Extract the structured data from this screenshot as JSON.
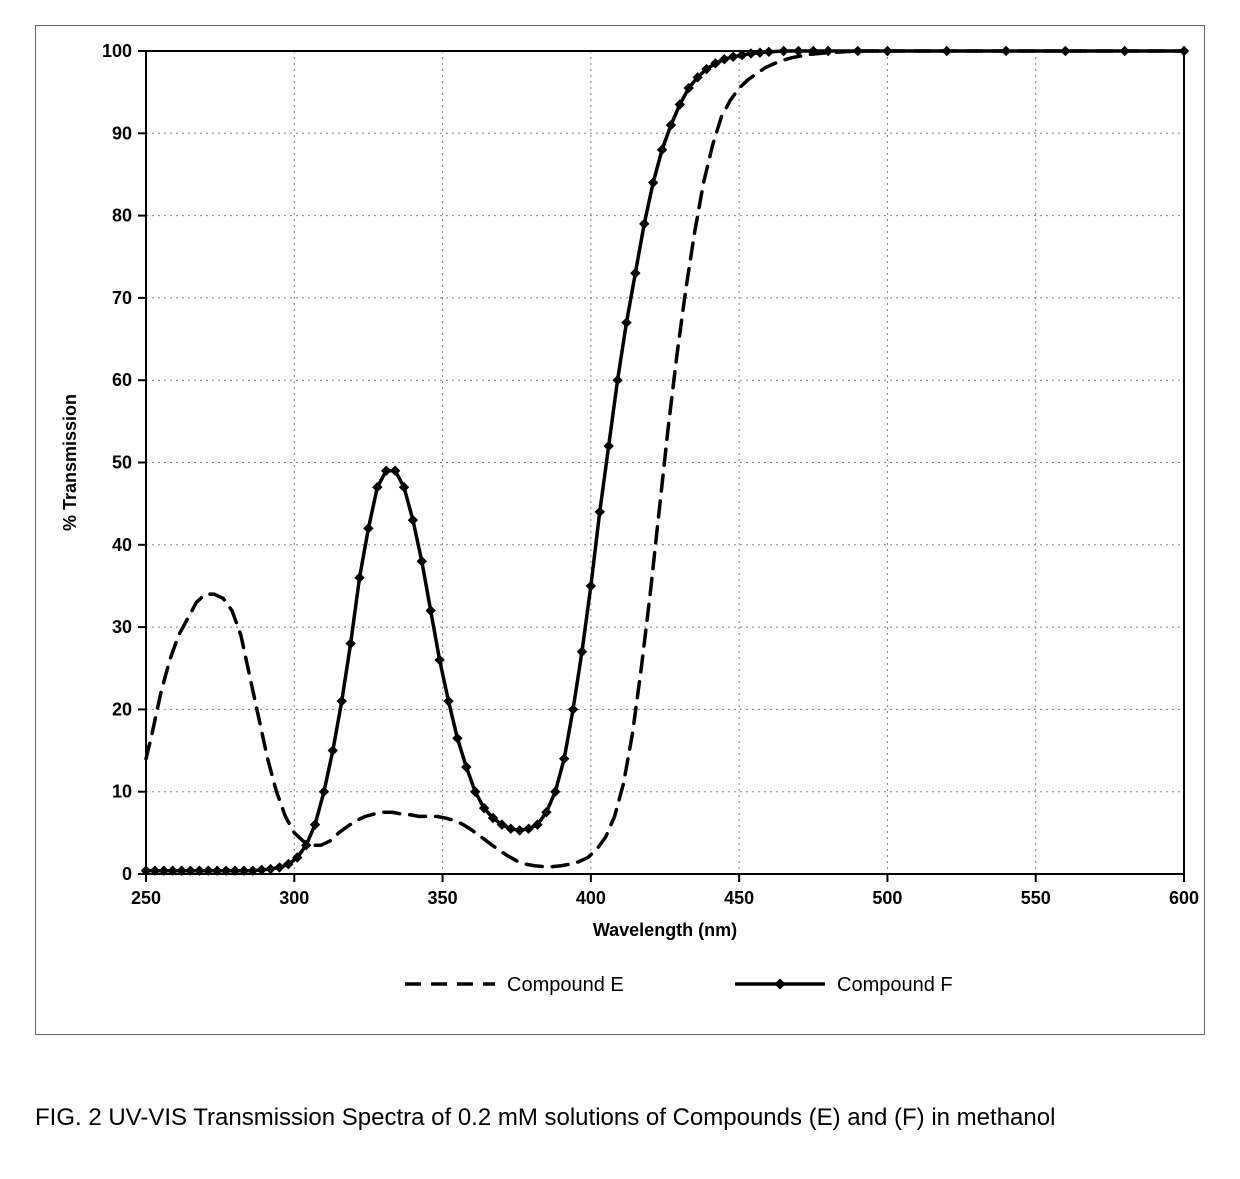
{
  "chart": {
    "type": "line",
    "title": "",
    "xlabel": "Wavelength (nm)",
    "ylabel": "% Transmission",
    "label_fontsize": 18,
    "label_fontweight": "bold",
    "tick_fontsize": 18,
    "tick_fontweight": "bold",
    "xlim": [
      250,
      600
    ],
    "ylim": [
      0,
      100
    ],
    "xtick_step": 50,
    "ytick_step": 10,
    "background_color": "#ffffff",
    "plot_border_color": "#000000",
    "plot_border_width": 2,
    "grid_color": "#808080",
    "grid_dash": "2,4",
    "outer_border_color": "#666666",
    "series": [
      {
        "name": "Compound E",
        "legend_label": "Compound E",
        "color": "#000000",
        "line_width": 3.5,
        "dash": "16,10",
        "marker": "none",
        "data": [
          [
            250,
            14
          ],
          [
            252,
            17
          ],
          [
            255,
            22
          ],
          [
            258,
            26
          ],
          [
            261,
            29
          ],
          [
            264,
            31
          ],
          [
            267,
            33
          ],
          [
            270,
            34
          ],
          [
            273,
            34
          ],
          [
            276,
            33.5
          ],
          [
            279,
            32
          ],
          [
            282,
            29
          ],
          [
            285,
            24
          ],
          [
            288,
            19
          ],
          [
            291,
            14
          ],
          [
            294,
            10
          ],
          [
            297,
            7
          ],
          [
            300,
            5
          ],
          [
            303,
            4
          ],
          [
            306,
            3.5
          ],
          [
            309,
            3.5
          ],
          [
            312,
            4
          ],
          [
            315,
            5
          ],
          [
            318,
            5.8
          ],
          [
            321,
            6.5
          ],
          [
            324,
            7
          ],
          [
            327,
            7.3
          ],
          [
            330,
            7.5
          ],
          [
            333,
            7.5
          ],
          [
            336,
            7.3
          ],
          [
            339,
            7.2
          ],
          [
            342,
            7.0
          ],
          [
            345,
            7.0
          ],
          [
            348,
            7.0
          ],
          [
            351,
            6.8
          ],
          [
            354,
            6.5
          ],
          [
            357,
            6.0
          ],
          [
            360,
            5.3
          ],
          [
            363,
            4.5
          ],
          [
            366,
            3.7
          ],
          [
            369,
            2.9
          ],
          [
            372,
            2.2
          ],
          [
            375,
            1.6
          ],
          [
            378,
            1.2
          ],
          [
            381,
            1.0
          ],
          [
            384,
            0.9
          ],
          [
            387,
            0.9
          ],
          [
            390,
            1.0
          ],
          [
            393,
            1.2
          ],
          [
            396,
            1.5
          ],
          [
            399,
            2.0
          ],
          [
            402,
            3.0
          ],
          [
            405,
            4.5
          ],
          [
            408,
            7
          ],
          [
            411,
            11
          ],
          [
            414,
            17
          ],
          [
            417,
            25
          ],
          [
            420,
            34
          ],
          [
            423,
            44
          ],
          [
            426,
            54
          ],
          [
            429,
            63
          ],
          [
            432,
            71
          ],
          [
            435,
            78
          ],
          [
            438,
            84
          ],
          [
            441,
            88.5
          ],
          [
            444,
            92
          ],
          [
            447,
            94
          ],
          [
            450,
            95.5
          ],
          [
            453,
            96.5
          ],
          [
            456,
            97.3
          ],
          [
            459,
            98
          ],
          [
            462,
            98.5
          ],
          [
            465,
            98.9
          ],
          [
            468,
            99.2
          ],
          [
            471,
            99.4
          ],
          [
            474,
            99.6
          ],
          [
            477,
            99.7
          ],
          [
            480,
            99.8
          ],
          [
            485,
            99.9
          ],
          [
            490,
            100
          ],
          [
            500,
            100
          ],
          [
            520,
            100
          ],
          [
            550,
            100
          ],
          [
            580,
            100
          ],
          [
            600,
            100
          ]
        ]
      },
      {
        "name": "Compound F",
        "legend_label": "Compound F",
        "color": "#000000",
        "line_width": 3.5,
        "dash": "none",
        "marker": "diamond",
        "marker_size": 9,
        "marker_fill": "#000000",
        "data": [
          [
            250,
            0.4
          ],
          [
            253,
            0.4
          ],
          [
            256,
            0.4
          ],
          [
            259,
            0.4
          ],
          [
            262,
            0.4
          ],
          [
            265,
            0.4
          ],
          [
            268,
            0.4
          ],
          [
            271,
            0.4
          ],
          [
            274,
            0.4
          ],
          [
            277,
            0.4
          ],
          [
            280,
            0.4
          ],
          [
            283,
            0.4
          ],
          [
            286,
            0.4
          ],
          [
            289,
            0.5
          ],
          [
            292,
            0.6
          ],
          [
            295,
            0.8
          ],
          [
            298,
            1.2
          ],
          [
            301,
            2.0
          ],
          [
            304,
            3.5
          ],
          [
            307,
            6
          ],
          [
            310,
            10
          ],
          [
            313,
            15
          ],
          [
            316,
            21
          ],
          [
            319,
            28
          ],
          [
            322,
            36
          ],
          [
            325,
            42
          ],
          [
            328,
            47
          ],
          [
            331,
            49
          ],
          [
            334,
            49
          ],
          [
            337,
            47
          ],
          [
            340,
            43
          ],
          [
            343,
            38
          ],
          [
            346,
            32
          ],
          [
            349,
            26
          ],
          [
            352,
            21
          ],
          [
            355,
            16.5
          ],
          [
            358,
            13
          ],
          [
            361,
            10
          ],
          [
            364,
            8
          ],
          [
            367,
            6.8
          ],
          [
            370,
            6
          ],
          [
            373,
            5.5
          ],
          [
            376,
            5.3
          ],
          [
            379,
            5.5
          ],
          [
            382,
            6
          ],
          [
            385,
            7.5
          ],
          [
            388,
            10
          ],
          [
            391,
            14
          ],
          [
            394,
            20
          ],
          [
            397,
            27
          ],
          [
            400,
            35
          ],
          [
            403,
            44
          ],
          [
            406,
            52
          ],
          [
            409,
            60
          ],
          [
            412,
            67
          ],
          [
            415,
            73
          ],
          [
            418,
            79
          ],
          [
            421,
            84
          ],
          [
            424,
            88
          ],
          [
            427,
            91
          ],
          [
            430,
            93.5
          ],
          [
            433,
            95.5
          ],
          [
            436,
            96.8
          ],
          [
            439,
            97.8
          ],
          [
            442,
            98.5
          ],
          [
            445,
            99
          ],
          [
            448,
            99.3
          ],
          [
            451,
            99.5
          ],
          [
            454,
            99.7
          ],
          [
            457,
            99.8
          ],
          [
            460,
            99.9
          ],
          [
            465,
            100
          ],
          [
            470,
            100
          ],
          [
            475,
            100
          ],
          [
            480,
            100
          ],
          [
            490,
            100
          ],
          [
            500,
            100
          ],
          [
            520,
            100
          ],
          [
            540,
            100
          ],
          [
            560,
            100
          ],
          [
            580,
            100
          ],
          [
            600,
            100
          ]
        ]
      }
    ],
    "legend": {
      "position": "bottom",
      "fontsize": 20,
      "items": [
        "Compound E",
        "Compound F"
      ]
    }
  },
  "caption": "FIG. 2 UV-VIS Transmission Spectra of 0.2 mM solutions of Compounds (E) and (F) in methanol"
}
